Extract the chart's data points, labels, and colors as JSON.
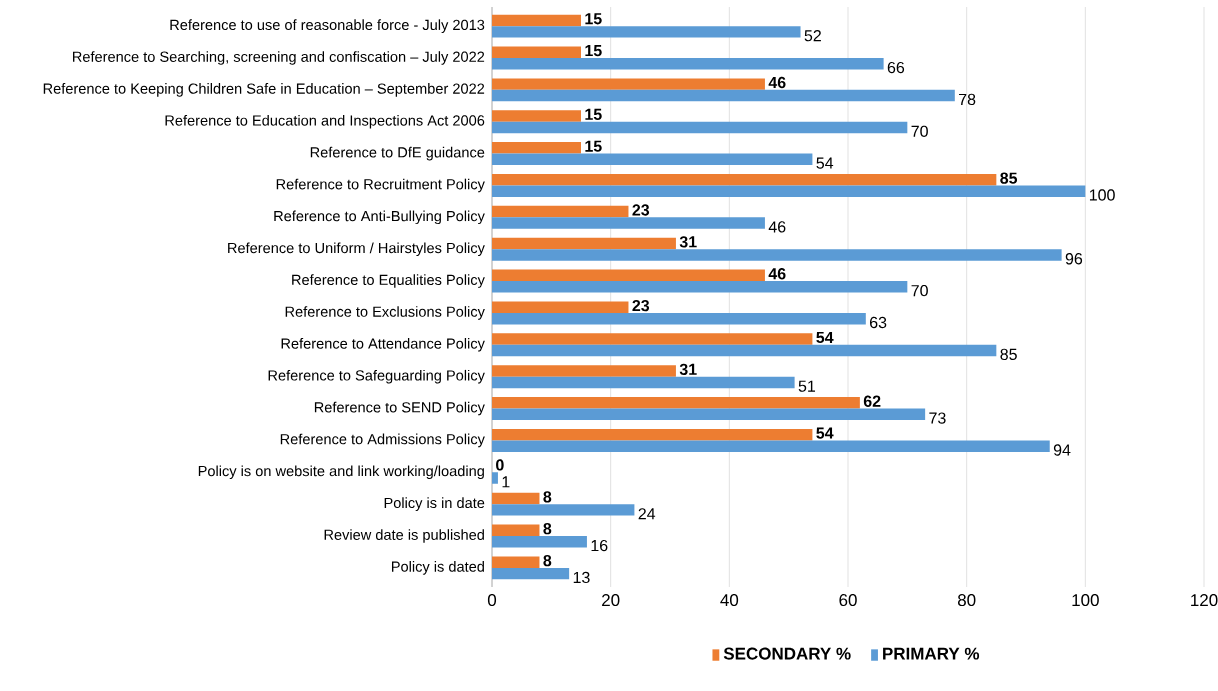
{
  "chart_data": {
    "type": "bar",
    "orientation": "horizontal",
    "categories": [
      "Reference to use of reasonable force - July 2013",
      "Reference to Searching, screening and confiscation – July 2022",
      "Reference to Keeping Children Safe in Education – September 2022",
      "Reference to Education and Inspections Act 2006",
      "Reference to DfE guidance",
      "Reference to Recruitment Policy",
      "Reference to Anti-Bullying Policy",
      "Reference to Uniform / Hairstyles Policy",
      "Reference to Equalities Policy",
      "Reference to Exclusions Policy",
      "Reference to Attendance Policy",
      "Reference to Safeguarding Policy",
      "Reference to SEND Policy",
      "Reference to Admissions Policy",
      "Policy is on website and link working/loading",
      "Policy is in date",
      "Review date is published",
      "Policy is dated"
    ],
    "series": [
      {
        "name": "SECONDARY %",
        "color": "#ed7d31",
        "values": [
          15,
          15,
          46,
          15,
          15,
          85,
          23,
          31,
          46,
          23,
          54,
          31,
          62,
          54,
          0,
          8,
          8,
          8
        ]
      },
      {
        "name": "PRIMARY %",
        "color": "#5b9bd5",
        "values": [
          52,
          66,
          78,
          70,
          54,
          100,
          46,
          96,
          70,
          63,
          85,
          51,
          73,
          94,
          1,
          24,
          16,
          13
        ]
      }
    ],
    "xlim": [
      0,
      120
    ],
    "xticks": [
      0,
      20,
      40,
      60,
      80,
      100,
      120
    ],
    "grid": "x",
    "legend": "bottom",
    "data_labels": true
  }
}
